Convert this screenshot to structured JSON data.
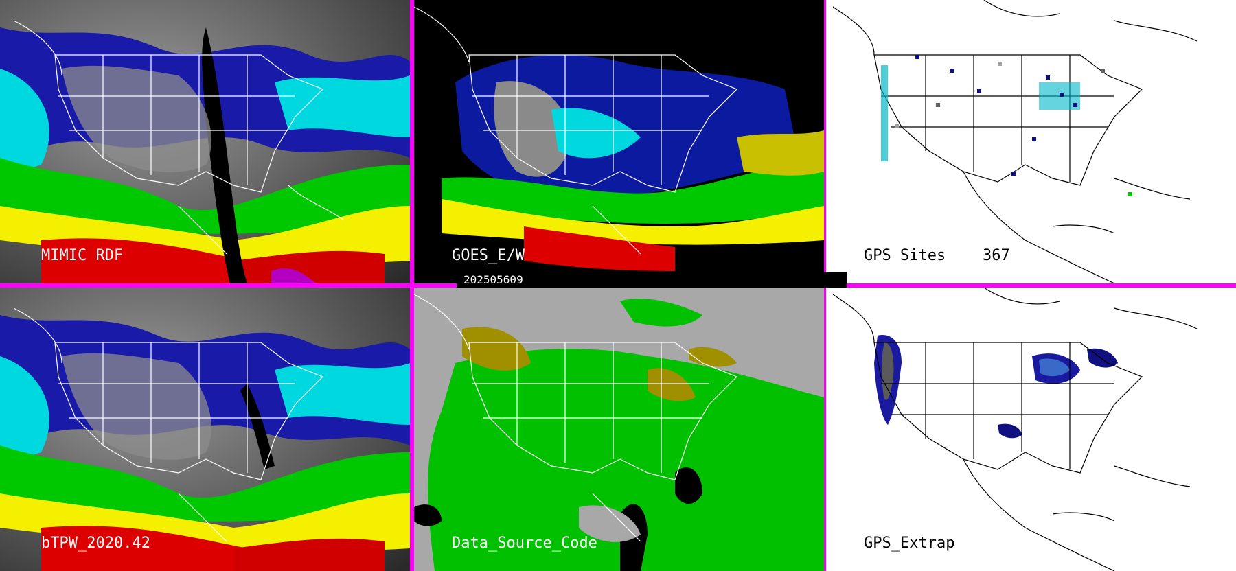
{
  "panels": {
    "top_left": {
      "label": "MIMIC RDF"
    },
    "top_mid": {
      "label": "GOES_E/W"
    },
    "top_right": {
      "label": "GPS Sites",
      "count": "367"
    },
    "bottom_left": {
      "label": "bTPW_2020.42"
    },
    "bottom_mid": {
      "label": "Data_Source_Code"
    },
    "bottom_right": {
      "label": "GPS_Extrap"
    }
  },
  "date_stamp": "202505609",
  "colors": {
    "divider": "#ff00ff",
    "label_on_dark": "#ffffff",
    "label_on_light": "#000000",
    "tpw_palette": [
      "#1a1a8c",
      "#0000c8",
      "#00e6e6",
      "#00b400",
      "#ffff00",
      "#d40000",
      "#b400b4"
    ],
    "source_green": "#00c000",
    "source_gray": "#a8a8a8",
    "source_olive": "#a09000"
  }
}
